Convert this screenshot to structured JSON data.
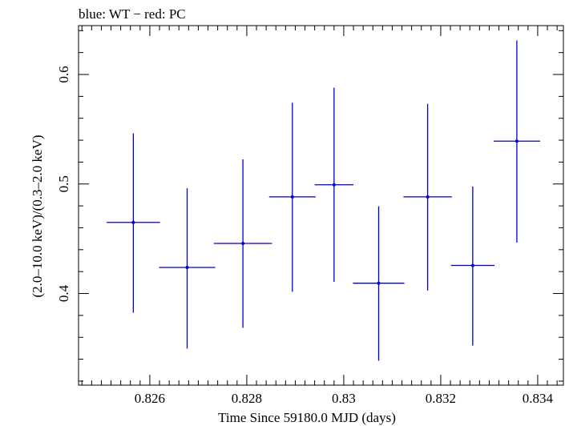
{
  "chart_data": {
    "type": "scatter",
    "title": "blue: WT − red: PC",
    "xlabel": "Time Since 59180.0 MJD (days)",
    "ylabel": "(2.0–10.0 keV)/(0.3–2.0 keV)",
    "xlim": [
      0.82453,
      0.83453
    ],
    "ylim": [
      0.3163,
      0.6446
    ],
    "x_ticks": [
      0.826,
      0.828,
      0.83,
      0.832,
      0.834
    ],
    "x_tick_labels": [
      "0.826",
      "0.828",
      "0.83",
      "0.832",
      "0.834"
    ],
    "y_ticks": [
      0.4,
      0.5,
      0.6
    ],
    "y_tick_labels": [
      "0.4",
      "0.5",
      "0.6"
    ],
    "grid": false,
    "series": [
      {
        "name": "WT",
        "color": "#0000cc",
        "points": [
          {
            "x": 0.82566,
            "y": 0.4649,
            "xerr": 0.00055,
            "ylo": 0.3825,
            "yhi": 0.5463
          },
          {
            "x": 0.82677,
            "y": 0.4238,
            "xerr": 0.00058,
            "ylo": 0.3497,
            "yhi": 0.4961
          },
          {
            "x": 0.82792,
            "y": 0.4457,
            "xerr": 0.0006,
            "ylo": 0.3687,
            "yhi": 0.5225
          },
          {
            "x": 0.82894,
            "y": 0.4882,
            "xerr": 0.00048,
            "ylo": 0.4016,
            "yhi": 0.5742
          },
          {
            "x": 0.8298,
            "y": 0.4993,
            "xerr": 0.0004,
            "ylo": 0.4106,
            "yhi": 0.5879
          },
          {
            "x": 0.83072,
            "y": 0.4094,
            "xerr": 0.00053,
            "ylo": 0.3386,
            "yhi": 0.4796
          },
          {
            "x": 0.83173,
            "y": 0.4882,
            "xerr": 0.0005,
            "ylo": 0.4027,
            "yhi": 0.5731
          },
          {
            "x": 0.83266,
            "y": 0.4256,
            "xerr": 0.00045,
            "ylo": 0.3524,
            "yhi": 0.4977
          },
          {
            "x": 0.83357,
            "y": 0.5391,
            "xerr": 0.00048,
            "ylo": 0.4465,
            "yhi": 0.6311
          }
        ]
      }
    ]
  }
}
